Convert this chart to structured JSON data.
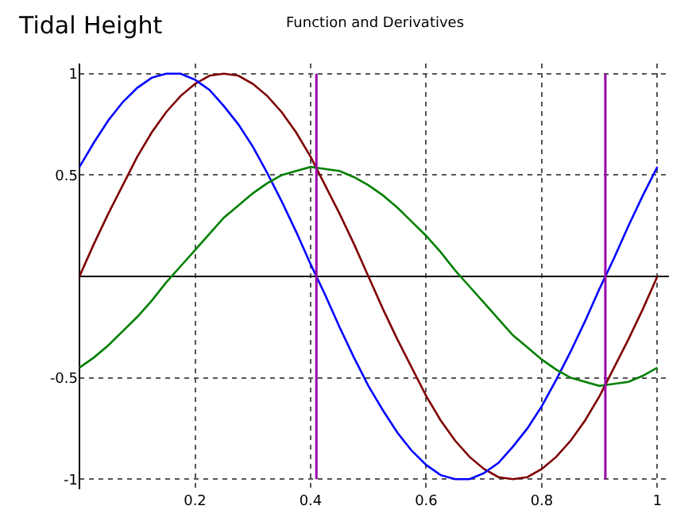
{
  "chart_data": {
    "type": "line",
    "title": "Tidal Height",
    "subtitle": "Function and Derivatives",
    "x": [
      0,
      0.025,
      0.05,
      0.075,
      0.1,
      0.125,
      0.15,
      0.175,
      0.2,
      0.225,
      0.25,
      0.275,
      0.3,
      0.325,
      0.35,
      0.375,
      0.4,
      0.425,
      0.45,
      0.475,
      0.5,
      0.525,
      0.55,
      0.575,
      0.6,
      0.625,
      0.65,
      0.675,
      0.7,
      0.725,
      0.75,
      0.775,
      0.8,
      0.825,
      0.85,
      0.875,
      0.9,
      0.925,
      0.95,
      0.975,
      1
    ],
    "series": [
      {
        "color": "#800000",
        "values": [
          0,
          0.16,
          0.31,
          0.45,
          0.59,
          0.71,
          0.81,
          0.89,
          0.95,
          0.99,
          1,
          0.99,
          0.95,
          0.89,
          0.81,
          0.71,
          0.59,
          0.45,
          0.31,
          0.16,
          0,
          -0.16,
          -0.31,
          -0.45,
          -0.59,
          -0.71,
          -0.81,
          -0.89,
          -0.95,
          -0.99,
          -1,
          -0.99,
          -0.95,
          -0.89,
          -0.81,
          -0.71,
          -0.59,
          -0.45,
          -0.31,
          -0.16,
          0
        ]
      },
      {
        "color": "#0000ff",
        "values": [
          0.54,
          0.66,
          0.77,
          0.86,
          0.93,
          0.98,
          1,
          1,
          0.97,
          0.92,
          0.84,
          0.75,
          0.64,
          0.51,
          0.37,
          0.22,
          0.06,
          -0.09,
          -0.25,
          -0.4,
          -0.54,
          -0.66,
          -0.77,
          -0.86,
          -0.93,
          -0.98,
          -1,
          -1,
          -0.97,
          -0.92,
          -0.84,
          -0.75,
          -0.64,
          -0.51,
          -0.37,
          -0.22,
          -0.06,
          0.09,
          0.25,
          0.4,
          0.54
        ]
      },
      {
        "color": "#008000",
        "values": [
          -0.45,
          -0.4,
          -0.34,
          -0.27,
          -0.2,
          -0.12,
          -0.03,
          0.05,
          0.13,
          0.21,
          0.29,
          0.35,
          0.41,
          0.46,
          0.5,
          0.52,
          0.54,
          0.53,
          0.52,
          0.49,
          0.45,
          0.4,
          0.34,
          0.27,
          0.2,
          0.12,
          0.03,
          -0.05,
          -0.13,
          -0.21,
          -0.29,
          -0.35,
          -0.41,
          -0.46,
          -0.5,
          -0.52,
          -0.54,
          -0.53,
          -0.52,
          -0.49,
          -0.45
        ]
      }
    ],
    "ref_lines": [
      {
        "axis": "x",
        "value": 0.41,
        "color": "#9900aa"
      },
      {
        "axis": "x",
        "value": 0.91,
        "color": "#9900aa"
      }
    ],
    "xlim": [
      0,
      1.02
    ],
    "ylim": [
      -1.05,
      1.05
    ],
    "xticks": [
      0.2,
      0.4,
      0.6,
      0.8,
      1
    ],
    "yticks": [
      -1,
      -0.5,
      0.5,
      1
    ],
    "grid": true,
    "marker": "none",
    "line_style": "solid"
  }
}
